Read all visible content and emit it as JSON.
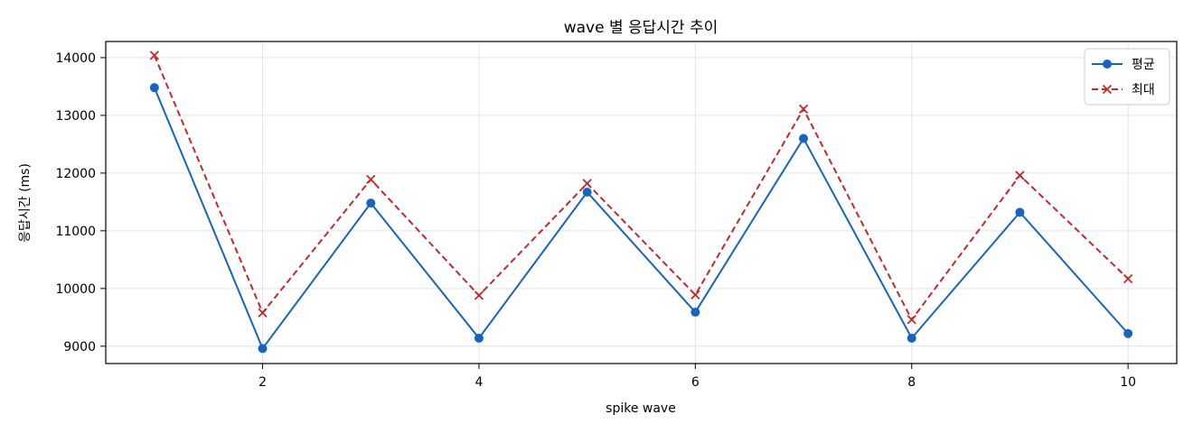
{
  "chart_data": {
    "type": "line",
    "title": "wave 별 응답시간 추이",
    "xlabel": "spike wave",
    "ylabel": "응답시간 (ms)",
    "xlim": [
      0.55,
      10.45
    ],
    "ylim": [
      8700,
      14280
    ],
    "xticks": [
      2,
      4,
      6,
      8,
      10
    ],
    "yticks": [
      9000,
      10000,
      11000,
      12000,
      13000,
      14000
    ],
    "grid": true,
    "legend_position": "top-right",
    "x": [
      1,
      2,
      3,
      4,
      5,
      6,
      7,
      8,
      9,
      10
    ],
    "series": [
      {
        "name": "평균",
        "color": "#1565c0",
        "line_style": "solid",
        "marker": "circle",
        "values": [
          13480,
          8960,
          11480,
          9140,
          11670,
          9590,
          12600,
          9140,
          11320,
          9220
        ]
      },
      {
        "name": "최대",
        "color": "#c62828",
        "line_style": "dashed",
        "marker": "x",
        "values": [
          14040,
          9580,
          11890,
          9880,
          11820,
          9890,
          13110,
          9460,
          11960,
          10170
        ]
      }
    ]
  }
}
